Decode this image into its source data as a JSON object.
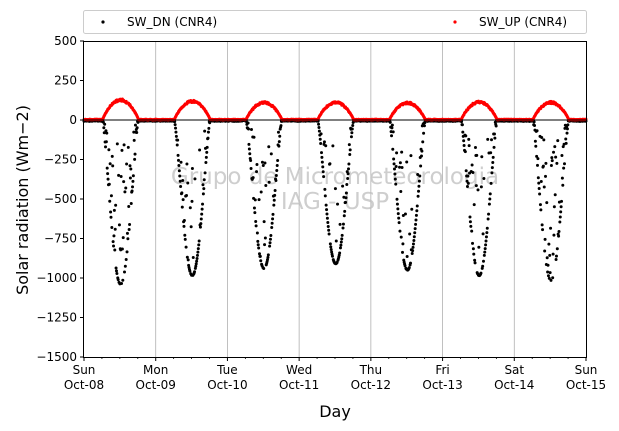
{
  "chart_data": {
    "type": "scatter",
    "ylabel": "Solar radiation (Wm−2)",
    "xlabel": "Day",
    "ylim": [
      -1500,
      500
    ],
    "yticks": [
      500,
      250,
      0,
      -250,
      -500,
      -750,
      -1000,
      -1250,
      -1500
    ],
    "ytick_labels": [
      "500",
      "250",
      "0",
      "−250",
      "−500",
      "−750",
      "−1000",
      "−1250",
      "−1500"
    ],
    "xlim": [
      0,
      7
    ],
    "xticks": [
      {
        "day": "Sun",
        "date": "Oct-08"
      },
      {
        "day": "Mon",
        "date": "Oct-09"
      },
      {
        "day": "Tue",
        "date": "Oct-10"
      },
      {
        "day": "Wed",
        "date": "Oct-11"
      },
      {
        "day": "Thu",
        "date": "Oct-12"
      },
      {
        "day": "Fri",
        "date": "Oct-13"
      },
      {
        "day": "Sat",
        "date": "Oct-14"
      },
      {
        "day": "Sun",
        "date": "Oct-15"
      }
    ],
    "grid": "x",
    "legend_position": "top",
    "watermark": [
      "Grupo de Micrometeorologia",
      "IAG - USP"
    ],
    "series": [
      {
        "name": "SW_DN (CNR4)",
        "color": "#000000",
        "marker": "dot",
        "daily_minimum": [
          -1040,
          -985,
          -940,
          -910,
          -950,
          -985,
          -1015
        ]
      },
      {
        "name": "SW_UP (CNR4)",
        "color": "#ff0000",
        "marker": "dot",
        "daily_maximum": [
          135,
          125,
          118,
          118,
          115,
          120,
          118
        ]
      }
    ],
    "zero_line": true
  }
}
